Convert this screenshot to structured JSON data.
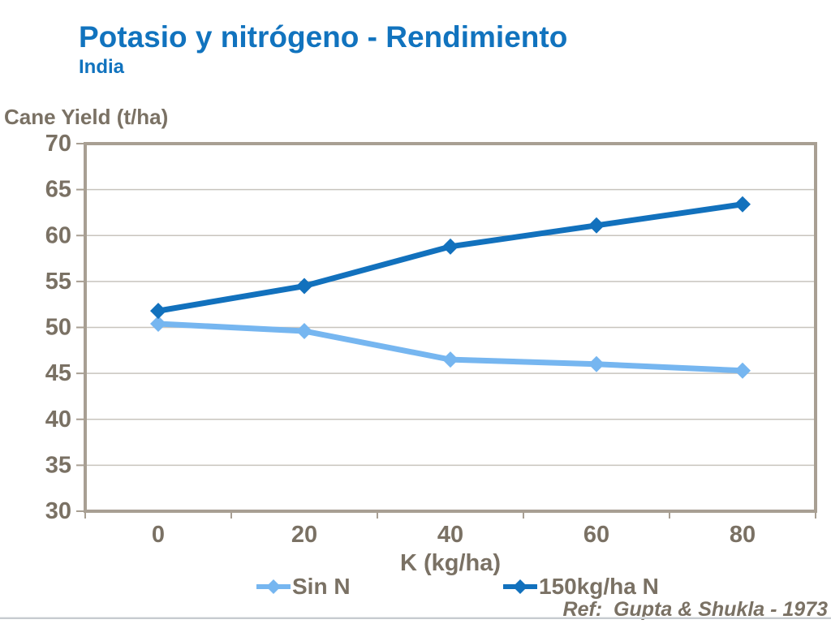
{
  "slide": {
    "title": "Potasio y nitrógeno - Rendimiento",
    "subtitle": "India",
    "reference": "Ref:  Gupta & Shukla - 1973"
  },
  "chart_data": {
    "type": "line",
    "title": "",
    "y_axis_title": "Cane Yield (t/ha)",
    "x_axis_title": "K (kg/ha)",
    "categories": [
      "0",
      "20",
      "40",
      "60",
      "80"
    ],
    "series": [
      {
        "name": "Sin N",
        "color": "#76b6f0",
        "values": [
          50.4,
          49.6,
          46.5,
          46.0,
          45.3
        ]
      },
      {
        "name": "150kg/ha N",
        "color": "#1271bd",
        "values": [
          51.8,
          54.5,
          58.8,
          61.1,
          63.4
        ]
      }
    ],
    "ylim": [
      30,
      70
    ],
    "y_tick_step": 5,
    "grid": true,
    "legend_position": "bottom",
    "marker": "diamond"
  },
  "colors": {
    "title_blue": "#1173be",
    "axis_text": "#7a7164",
    "gridline": "#c8c4be",
    "frame": "#a89f93",
    "bottom_rule": "#c6cbd0"
  }
}
